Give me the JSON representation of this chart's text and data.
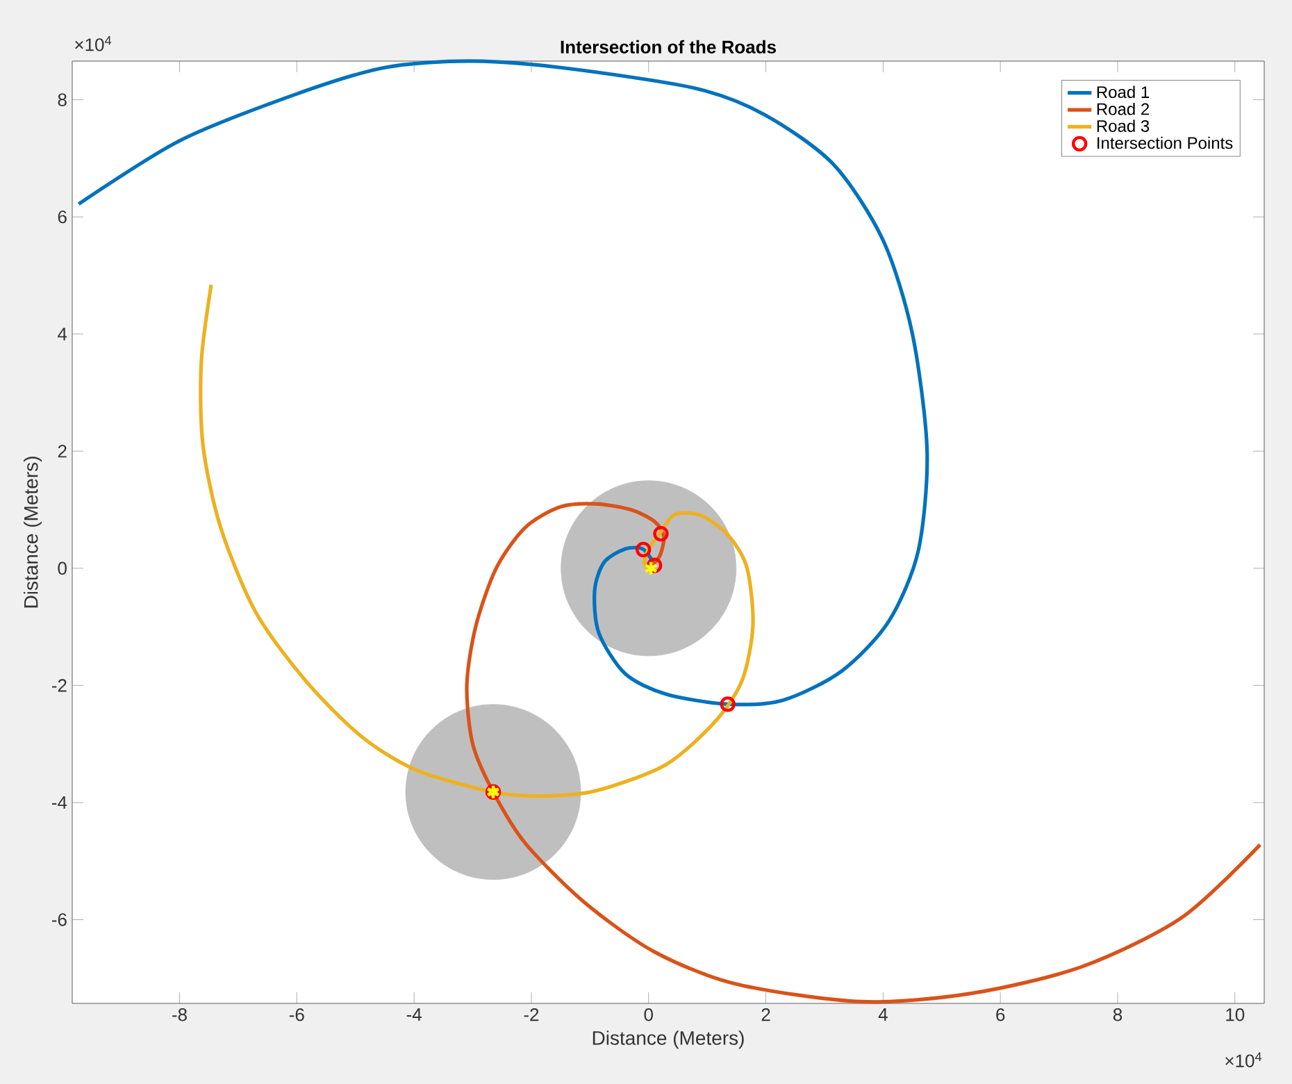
{
  "chart_data": {
    "type": "line",
    "title": "Intersection of the Roads",
    "xlabel": "Distance (Meters)",
    "ylabel": "Distance (Meters)",
    "xlim": [
      -9.83,
      10.5
    ],
    "ylim": [
      -7.43,
      8.66
    ],
    "xticks": [
      -8,
      -6,
      -4,
      -2,
      0,
      2,
      4,
      6,
      8,
      10
    ],
    "yticks": [
      -6,
      -4,
      -2,
      0,
      2,
      4,
      6,
      8
    ],
    "annotations": [
      "×10$^{4}$",
      "×10$^{4}$"
    ],
    "grid": false,
    "legend": "top right",
    "series": [
      {
        "type": "bubble",
        "color": "#bfbfbf",
        "x": [
          0,
          -2.65
        ],
        "values": [
          0,
          -3.82
        ],
        "sizes": [
          1,
          1
        ]
      },
      {
        "name": "Road 1",
        "color": "#0072bd",
        "x": [
          -9.72,
          -8,
          -6,
          -4.5,
          -3.06,
          -1.5,
          0.78,
          1.97,
          3.15,
          4.0,
          4.5,
          4.75,
          4.6,
          4.1,
          3.3,
          2.3,
          1.35,
          0.3,
          -0.4,
          -0.85,
          -0.92,
          -0.76,
          -0.4,
          -0.1,
          0.07,
          0
        ],
        "values": [
          6.22,
          7.3,
          8.1,
          8.55,
          8.66,
          8.55,
          8.2,
          7.75,
          6.9,
          5.6,
          4.0,
          2.0,
          0.3,
          -0.9,
          -1.75,
          -2.25,
          -2.32,
          -2.15,
          -1.8,
          -1.1,
          -0.38,
          0.1,
          0.33,
          0.33,
          0.1,
          0
        ]
      },
      {
        "name": "Road 2",
        "color": "#d95319",
        "x": [
          0,
          0.19,
          0.26,
          0.1,
          -0.3,
          -0.9,
          -1.5,
          -2.1,
          -2.6,
          -2.95,
          -3.1,
          -3.0,
          -2.65,
          -2.1,
          -1.1,
          0.1,
          1.5,
          3.63,
          5.5,
          7.4,
          9.1,
          10.43
        ],
        "values": [
          0,
          0.21,
          0.55,
          0.8,
          1.0,
          1.1,
          1.05,
          0.7,
          0,
          -1.0,
          -2.0,
          -3.0,
          -3.82,
          -4.7,
          -5.7,
          -6.55,
          -7.1,
          -7.4,
          -7.26,
          -6.8,
          -5.96,
          -4.72
        ]
      },
      {
        "name": "Road 3",
        "color": "#edb120",
        "x": [
          -7.46,
          -7.63,
          -7.6,
          -7.3,
          -6.7,
          -5.85,
          -4.9,
          -3.95,
          -2.65,
          -1.82,
          -0.9,
          0.3,
          1.15,
          1.6,
          1.78,
          1.68,
          1.37,
          0.9,
          0.45,
          0.21,
          0,
          -0.07,
          0
        ],
        "values": [
          4.84,
          3.5,
          2.1,
          0.7,
          -0.75,
          -1.92,
          -2.87,
          -3.45,
          -3.82,
          -3.89,
          -3.8,
          -3.35,
          -2.6,
          -1.9,
          -0.97,
          0,
          0.55,
          0.9,
          0.92,
          0.62,
          0.33,
          0.09,
          0
        ]
      },
      {
        "type": "scatter",
        "name": "Intersection Points",
        "color": "#ff0000",
        "marker": "circle",
        "x": [
          0.21,
          -0.09,
          0.1,
          1.35,
          -2.65
        ],
        "values": [
          0.59,
          0.32,
          0.05,
          -2.32,
          -3.82
        ]
      },
      {
        "type": "scatter",
        "color": "#ffff00",
        "marker": "cross",
        "x": [
          0.04,
          -2.65
        ],
        "values": [
          0,
          -3.82
        ]
      }
    ]
  }
}
